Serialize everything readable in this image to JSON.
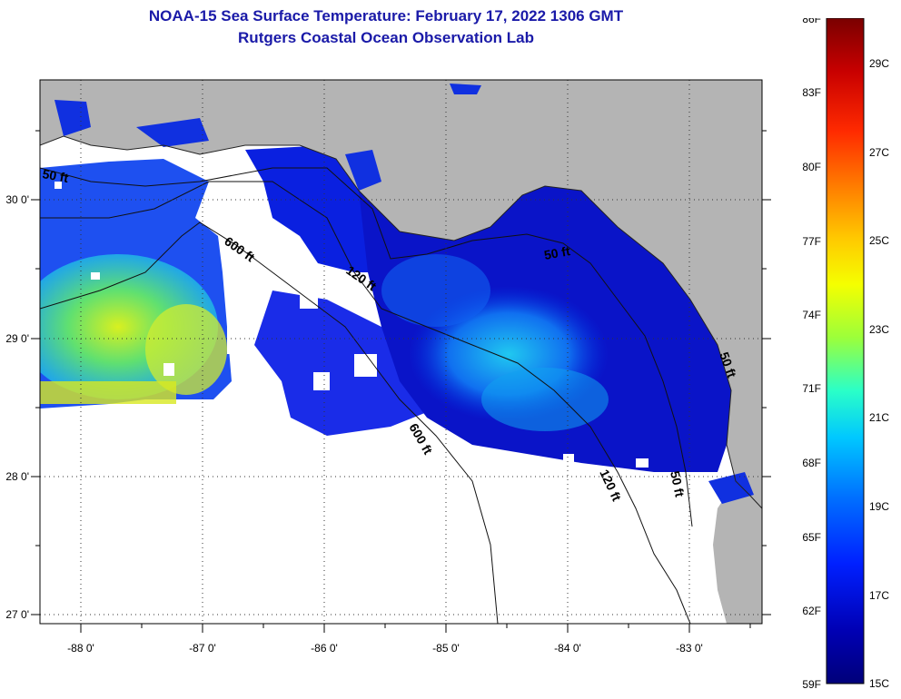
{
  "title": "NOAA-15 Sea Surface Temperature:  February 17, 2022 1306 GMT",
  "subtitle": "Rutgers Coastal Ocean Observation Lab",
  "axes": {
    "lon_labels": [
      "-88 0'",
      "-87 0'",
      "-86 0'",
      "-85 0'",
      "-84 0'",
      "-83 0'"
    ],
    "lat_labels": [
      "30 0'",
      "29 0'",
      "28 0'",
      "27 0'"
    ]
  },
  "contour_labels": [
    "50 ft",
    "600 ft",
    "120 ft",
    "50 ft",
    "600 ft",
    "120 ft",
    "50 ft",
    "50 ft"
  ],
  "colorbar": {
    "f_labels": [
      "86F",
      "83F",
      "80F",
      "77F",
      "74F",
      "71F",
      "68F",
      "65F",
      "62F",
      "59F"
    ],
    "c_labels": [
      "29C",
      "27C",
      "25C",
      "23C",
      "21C",
      "19C",
      "17C",
      "15C"
    ],
    "colors": [
      "#7a0000",
      "#c80000",
      "#ff2a00",
      "#ff7a00",
      "#ffc800",
      "#f5ff00",
      "#9cff3a",
      "#2affc8",
      "#00c8ff",
      "#0070ff",
      "#0020ff",
      "#0000b4",
      "#00007a"
    ]
  },
  "colors": {
    "land": "#b4b4b4",
    "nodata": "#ffffff",
    "title": "#1a1aa8"
  }
}
